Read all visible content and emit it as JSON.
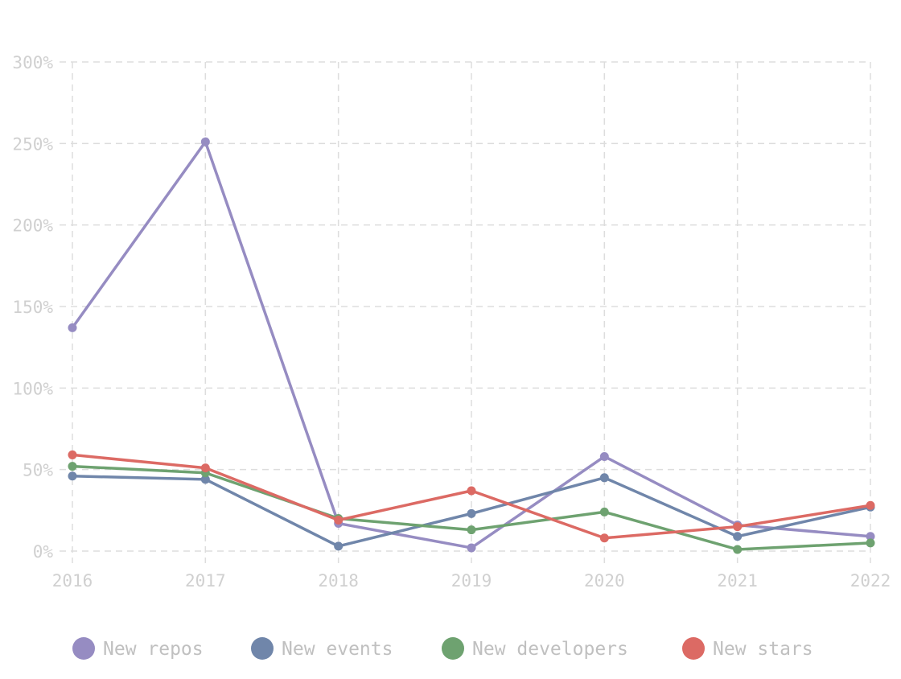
{
  "chart_data": {
    "type": "line",
    "title": "",
    "xlabel": "",
    "ylabel": "",
    "categories": [
      "2016",
      "2017",
      "2018",
      "2019",
      "2020",
      "2021",
      "2022"
    ],
    "y_ticks": [
      "0%",
      "50%",
      "100%",
      "150%",
      "200%",
      "250%",
      "300%"
    ],
    "ylim": [
      0,
      300
    ],
    "y_unit": "%",
    "grid": true,
    "grid_style": "dashed",
    "legend_position": "bottom",
    "series": [
      {
        "name": "New repos",
        "color": "#968cc2",
        "values": [
          137,
          251,
          17,
          2,
          58,
          16,
          9
        ]
      },
      {
        "name": "New events",
        "color": "#7086aa",
        "values": [
          46,
          44,
          3,
          23,
          45,
          9,
          27
        ]
      },
      {
        "name": "New developers",
        "color": "#6ea270",
        "values": [
          52,
          48,
          20,
          13,
          24,
          1,
          5
        ]
      },
      {
        "name": "New stars",
        "color": "#dc6a64",
        "values": [
          59,
          51,
          19,
          37,
          8,
          15,
          28
        ]
      }
    ]
  }
}
